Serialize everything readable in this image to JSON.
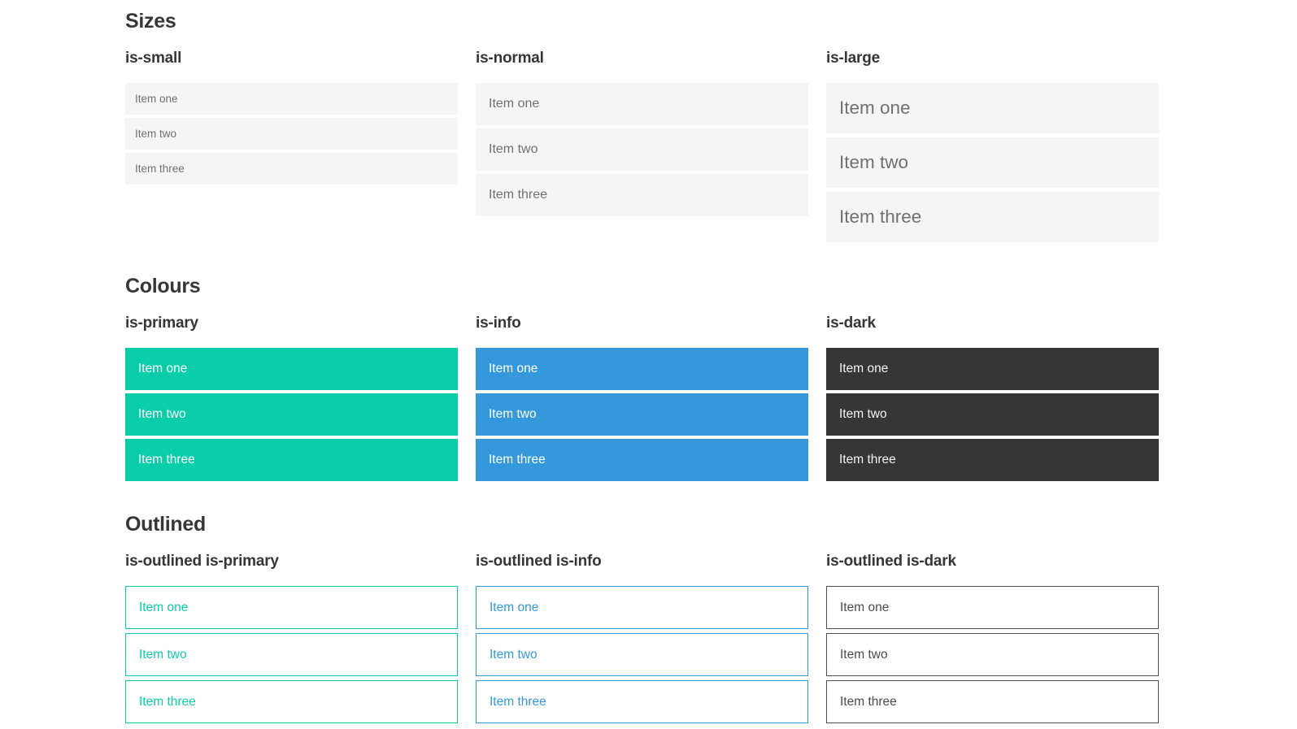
{
  "colors": {
    "primary": "#0acdaa",
    "info": "#3498db",
    "dark": "#363636",
    "item_bg": "#f5f5f5",
    "item_text": "#707070",
    "heading_text": "#363636",
    "dark_item_text": "#f2f2f2",
    "outlined_dark_text": "#4a4a4a",
    "outlined_dark_border": "#4f4f4f"
  },
  "sections": [
    {
      "title": "Sizes",
      "groups": [
        {
          "label": "is-small",
          "items": [
            "Item one",
            "Item two",
            "Item three"
          ]
        },
        {
          "label": "is-normal",
          "items": [
            "Item one",
            "Item two",
            "Item three"
          ]
        },
        {
          "label": "is-large",
          "items": [
            "Item one",
            "Item two",
            "Item three"
          ]
        }
      ]
    },
    {
      "title": "Colours",
      "groups": [
        {
          "label": "is-primary",
          "items": [
            "Item one",
            "Item two",
            "Item three"
          ]
        },
        {
          "label": "is-info",
          "items": [
            "Item one",
            "Item two",
            "Item three"
          ]
        },
        {
          "label": "is-dark",
          "items": [
            "Item one",
            "Item two",
            "Item three"
          ]
        }
      ]
    },
    {
      "title": "Outlined",
      "groups": [
        {
          "label": "is-outlined is-primary",
          "items": [
            "Item one",
            "Item two",
            "Item three"
          ]
        },
        {
          "label": "is-outlined is-info",
          "items": [
            "Item one",
            "Item two",
            "Item three"
          ]
        },
        {
          "label": "is-outlined is-dark",
          "items": [
            "Item one",
            "Item two",
            "Item three"
          ]
        }
      ]
    }
  ]
}
